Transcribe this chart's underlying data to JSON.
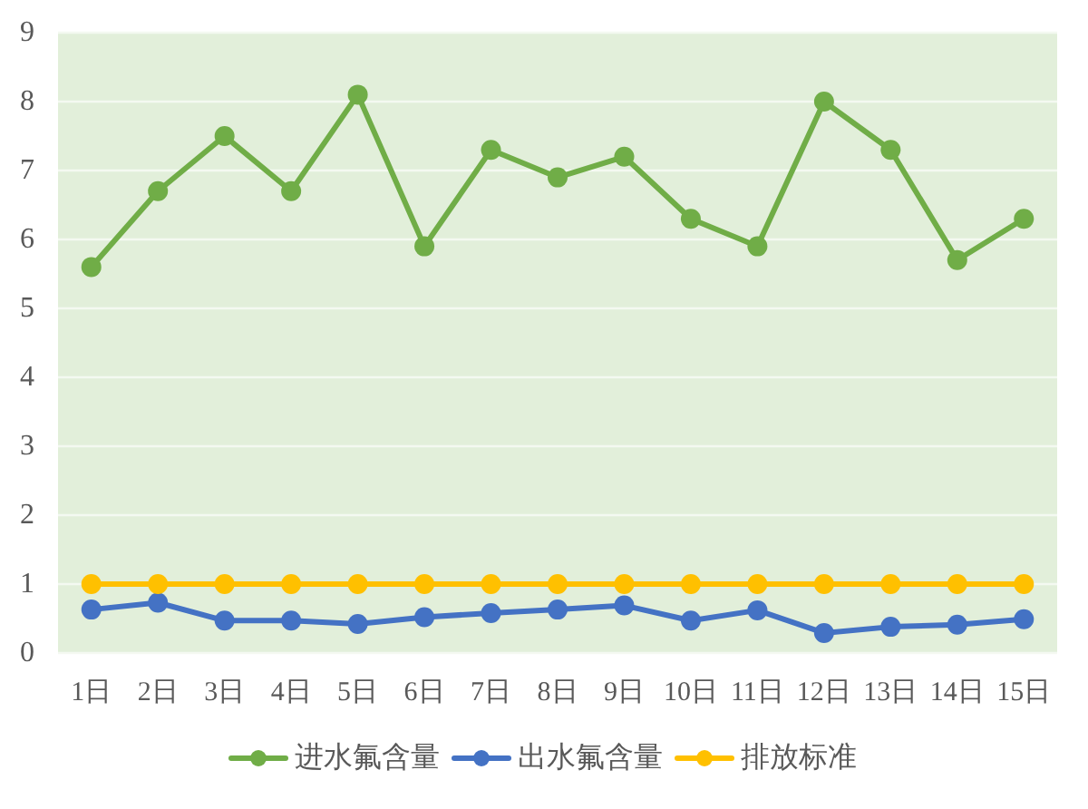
{
  "chart_data": {
    "type": "line",
    "categories": [
      "1日",
      "2日",
      "3日",
      "4日",
      "5日",
      "6日",
      "7日",
      "8日",
      "9日",
      "10日",
      "11日",
      "12日",
      "13日",
      "14日",
      "15日"
    ],
    "series": [
      {
        "name": "进水氟含量",
        "color": "#70ad47",
        "values": [
          5.6,
          6.7,
          7.5,
          6.7,
          8.1,
          5.9,
          7.3,
          6.9,
          7.2,
          6.3,
          5.9,
          8.0,
          7.3,
          5.7,
          6.3
        ]
      },
      {
        "name": "出水氟含量",
        "color": "#4472c4",
        "values": [
          0.63,
          0.73,
          0.47,
          0.47,
          0.42,
          0.52,
          0.58,
          0.63,
          0.69,
          0.47,
          0.62,
          0.29,
          0.38,
          0.41,
          0.49
        ]
      },
      {
        "name": "排放标准",
        "color": "#ffc000",
        "values": [
          1,
          1,
          1,
          1,
          1,
          1,
          1,
          1,
          1,
          1,
          1,
          1,
          1,
          1,
          1
        ]
      }
    ],
    "ylim": [
      0,
      9
    ],
    "yticks": [
      0,
      1,
      2,
      3,
      4,
      5,
      6,
      7,
      8,
      9
    ],
    "grid": "y",
    "legend": "bottom",
    "marker": "circle"
  }
}
